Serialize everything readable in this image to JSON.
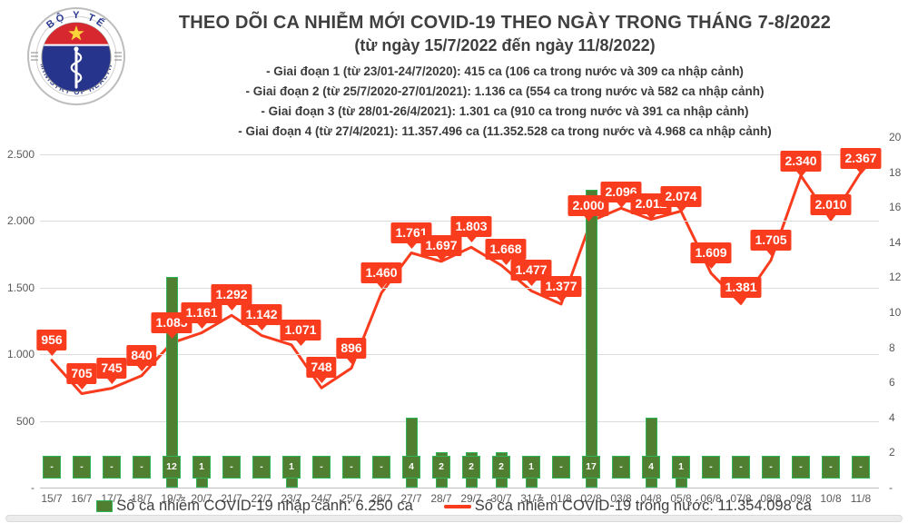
{
  "header": {
    "logo": {
      "top_text": "BỘ Y TẾ",
      "bottom_text": "MINISTRY OF HEALTH"
    },
    "title": "THEO DÕI CA NHIỄM MỚI COVID-19 THEO NGÀY TRONG THÁNG 7-8/2022",
    "subtitle": "(từ ngày 15/7/2022 đến ngày 11/8/2022)",
    "period_lines": [
      "- Giai đoạn 1 (từ 23/01-24/7/2020): 415 ca (106 ca trong nước và 309 ca nhập cảnh)",
      "- Giai đoạn 2 (từ 25/7/2020-27/01/2021): 1.136 ca (554 ca trong nước và 582 ca nhập cảnh)",
      "- Giai đoạn 3 (từ 28/01-26/4/2021): 1.301 ca (910 ca trong nước và 391 ca nhập cảnh)",
      "- Giai đoạn 4 (từ 27/4/2021): 11.357.496 ca (11.352.528 ca trong nước và 4.968 ca nhập cảnh)"
    ]
  },
  "legend": {
    "items": [
      {
        "label": "Số ca nhiễm COVID-19 nhập cảnh: 6.250 ca",
        "swatch": "green-bar"
      },
      {
        "label": "Số ca nhiễm COVID-19 trong nước: 11.354.098 ca",
        "swatch": "red-line"
      }
    ]
  },
  "colors": {
    "line_red": "#f93c1d",
    "bar_green": "#517f32",
    "bar_green_edge": "#2fb457",
    "title_text": "#3f3f3f",
    "axis_text": "#595959",
    "gridline": "#dcdcdc"
  },
  "chart_data": {
    "type": "line+bar",
    "title": "THEO DÕI CA NHIỄM MỚI COVID-19 THEO NGÀY TRONG THÁNG 7-8/2022",
    "subtitle": "(từ ngày 15/7/2022 đến ngày 11/8/2022)",
    "categories": [
      "15/7",
      "16/7",
      "17/7",
      "18/7",
      "19/7",
      "20/7",
      "21/7",
      "22/7",
      "23/7",
      "24/7",
      "25/7",
      "26/7",
      "27/7",
      "28/7",
      "29/7",
      "30/7",
      "31/7",
      "01/8",
      "02/8",
      "03/8",
      "04/8",
      "05/8",
      "06/8",
      "07/8",
      "08/8",
      "09/8",
      "10/8",
      "11/8"
    ],
    "series": [
      {
        "name": "Số ca nhiễm COVID-19 nhập cảnh",
        "type": "bar",
        "axis": "right",
        "values": [
          0,
          0,
          0,
          0,
          12,
          1,
          0,
          0,
          1,
          0,
          0,
          0,
          4,
          2,
          2,
          2,
          1,
          0,
          17,
          0,
          4,
          1,
          0,
          0,
          0,
          0,
          0,
          0
        ],
        "labels": [
          "-",
          "-",
          "-",
          "-",
          "12",
          "1",
          "-",
          "-",
          "1",
          "-",
          "-",
          "-",
          "4",
          "2",
          "2",
          "2",
          "1",
          "-",
          "17",
          "-",
          "4",
          "1",
          "-",
          "-",
          "-",
          "-",
          "-",
          "-"
        ]
      },
      {
        "name": "Số ca nhiễm COVID-19 trong nước",
        "type": "line",
        "axis": "left",
        "values": [
          956,
          705,
          745,
          840,
          1085,
          1161,
          1292,
          1142,
          1071,
          748,
          896,
          1460,
          1761,
          1697,
          1803,
          1668,
          1477,
          1377,
          2000,
          2096,
          2012,
          2074,
          1609,
          1381,
          1705,
          2340,
          2010,
          2367
        ],
        "labels": [
          "956",
          "705",
          "745",
          "840",
          "1.085",
          "1.161",
          "1.292",
          "1.142",
          "1.071",
          "748",
          "896",
          "1.460",
          "1.761",
          "1.697",
          "1.803",
          "1.668",
          "1.477",
          "1.377",
          "2.000",
          "2.096",
          "2.012",
          "2.074",
          "1.609",
          "1.381",
          "1.705",
          "2.340",
          "2.010",
          "2.367"
        ]
      }
    ],
    "left_axis": {
      "min": 0,
      "max": 2500,
      "step": 500,
      "tick_labels": [
        "2.500",
        "2.000",
        "1.500",
        "1.000",
        "500",
        "-"
      ]
    },
    "right_axis": {
      "min": 0,
      "max": 20,
      "step": 2,
      "tick_labels": [
        "20",
        "18",
        "16",
        "14",
        "12",
        "10",
        "8",
        "6",
        "4",
        "2",
        "-"
      ]
    },
    "grid": "horizontal",
    "legend_position": "bottom"
  }
}
